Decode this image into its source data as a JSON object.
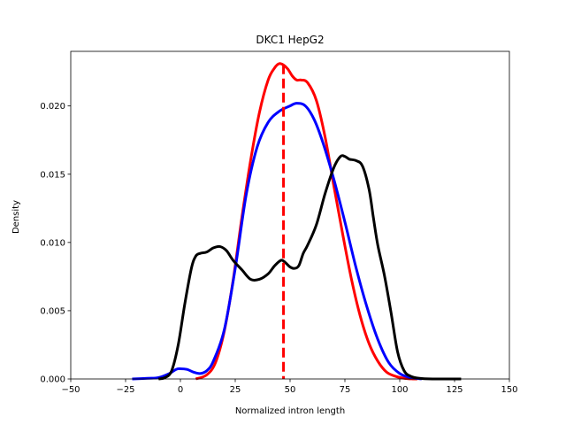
{
  "chart_data": {
    "type": "line",
    "title": "DKC1 HepG2",
    "xlabel": "Normalized intron length",
    "ylabel": "Density",
    "xlim": [
      -50,
      150
    ],
    "ylim": [
      0,
      0.024
    ],
    "xticks": [
      -50,
      -25,
      0,
      25,
      50,
      75,
      100,
      125,
      150
    ],
    "xtick_labels": [
      "−50",
      "−25",
      "0",
      "25",
      "50",
      "75",
      "100",
      "125",
      "150"
    ],
    "yticks": [
      0,
      0.005,
      0.01,
      0.015,
      0.02
    ],
    "ytick_labels": [
      "0.000",
      "0.005",
      "0.010",
      "0.015",
      "0.020"
    ],
    "grid": false,
    "series": [
      {
        "color": "#ff0000",
        "x": [
          7,
          12,
          16,
          20,
          24,
          28,
          32,
          36,
          40,
          43,
          45,
          47,
          49,
          51,
          53,
          55,
          58,
          62,
          66,
          70,
          74,
          78,
          82,
          86,
          90,
          94,
          98,
          102,
          106,
          108
        ],
        "y": [
          0,
          0.0003,
          0.0012,
          0.0035,
          0.0072,
          0.0118,
          0.016,
          0.0195,
          0.0219,
          0.0228,
          0.0231,
          0.023,
          0.0227,
          0.0222,
          0.0219,
          0.0219,
          0.0217,
          0.0204,
          0.0177,
          0.0141,
          0.0106,
          0.0073,
          0.0046,
          0.0026,
          0.0013,
          0.0005,
          0.0002,
          5e-05,
          0,
          0
        ]
      },
      {
        "color": "#0000ff",
        "x": [
          -22,
          -15,
          -10,
          -5,
          -2,
          0,
          3,
          6,
          9,
          12,
          15,
          20,
          25,
          30,
          35,
          40,
          45,
          50,
          53,
          57,
          61,
          65,
          70,
          75,
          80,
          85,
          90,
          95,
          100,
          105,
          110
        ],
        "y": [
          0,
          5e-05,
          0.0001,
          0.0004,
          0.0007,
          0.00075,
          0.0007,
          0.0005,
          0.0004,
          0.0006,
          0.0013,
          0.0036,
          0.0081,
          0.0135,
          0.017,
          0.0188,
          0.0196,
          0.02,
          0.0202,
          0.02,
          0.019,
          0.0173,
          0.0146,
          0.0115,
          0.0082,
          0.0053,
          0.0029,
          0.0012,
          0.0004,
          0.0001,
          0
        ]
      },
      {
        "color": "#000000",
        "x": [
          -10,
          -7,
          -4,
          -1,
          2,
          5,
          7,
          9,
          12,
          15,
          18,
          21,
          24,
          28,
          32,
          36,
          40,
          43,
          46,
          48,
          50,
          52,
          54,
          56,
          58,
          62,
          66,
          70,
          73,
          75,
          77,
          80,
          83,
          86,
          88,
          90,
          93,
          96,
          99,
          102,
          105,
          109,
          115,
          122,
          128
        ],
        "y": [
          0,
          0.0001,
          0.0006,
          0.0025,
          0.0055,
          0.0081,
          0.009,
          0.0092,
          0.0093,
          0.0096,
          0.0097,
          0.0094,
          0.0087,
          0.008,
          0.0073,
          0.0073,
          0.0077,
          0.0083,
          0.0087,
          0.0085,
          0.0082,
          0.0081,
          0.0083,
          0.0092,
          0.0098,
          0.0113,
          0.0136,
          0.0155,
          0.0163,
          0.0163,
          0.0161,
          0.016,
          0.0156,
          0.0139,
          0.0118,
          0.0098,
          0.0076,
          0.0049,
          0.002,
          0.0006,
          0.0002,
          5e-05,
          0,
          0,
          0
        ]
      }
    ],
    "annotations": [
      {
        "type": "vline",
        "x": 47,
        "color": "#ff0000",
        "style": "dashed"
      }
    ]
  }
}
